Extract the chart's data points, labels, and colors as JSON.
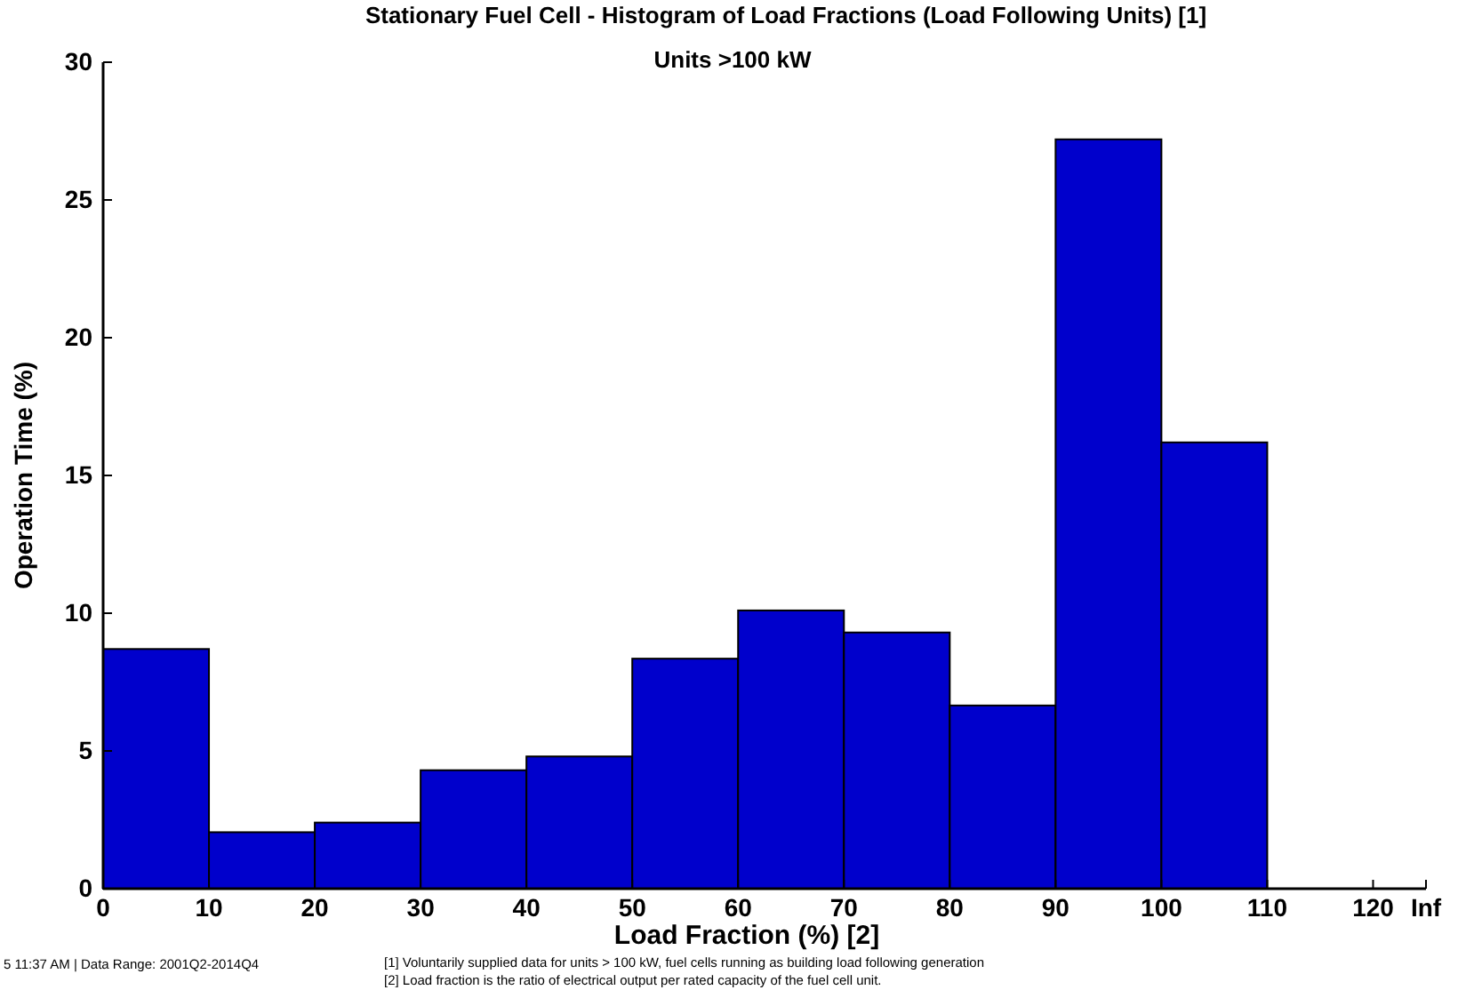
{
  "chart_data": {
    "type": "histogram",
    "title": "Stationary Fuel Cell - Histogram of Load Fractions (Load Following Units) [1]",
    "subtitle": "Units >100 kW",
    "xlabel": "Load Fraction (%) [2]",
    "ylabel": "Operation Time (%)",
    "bins": [
      0,
      10,
      20,
      30,
      40,
      50,
      60,
      70,
      80,
      90,
      100,
      110
    ],
    "values": [
      8.7,
      2.05,
      2.4,
      4.3,
      4.8,
      8.35,
      10.1,
      9.3,
      6.65,
      27.2,
      16.2
    ],
    "color": "#0000cc",
    "xlim": [
      0,
      125
    ],
    "xticks": [
      0,
      10,
      20,
      30,
      40,
      50,
      60,
      70,
      80,
      90,
      100,
      110,
      120,
      {
        "value": 125,
        "label": "Inf"
      }
    ],
    "ylim": [
      0,
      30
    ],
    "yticks": [
      0,
      5,
      10,
      15,
      20,
      25,
      30
    ],
    "annotations": [
      "5 11:37 AM | Data Range: 2001Q2-2014Q4",
      "[1] Voluntarily supplied data for units > 100 kW, fuel cells running as building load following generation",
      "[2] Load fraction is the ratio of electrical output per rated capacity of the fuel cell unit."
    ]
  }
}
